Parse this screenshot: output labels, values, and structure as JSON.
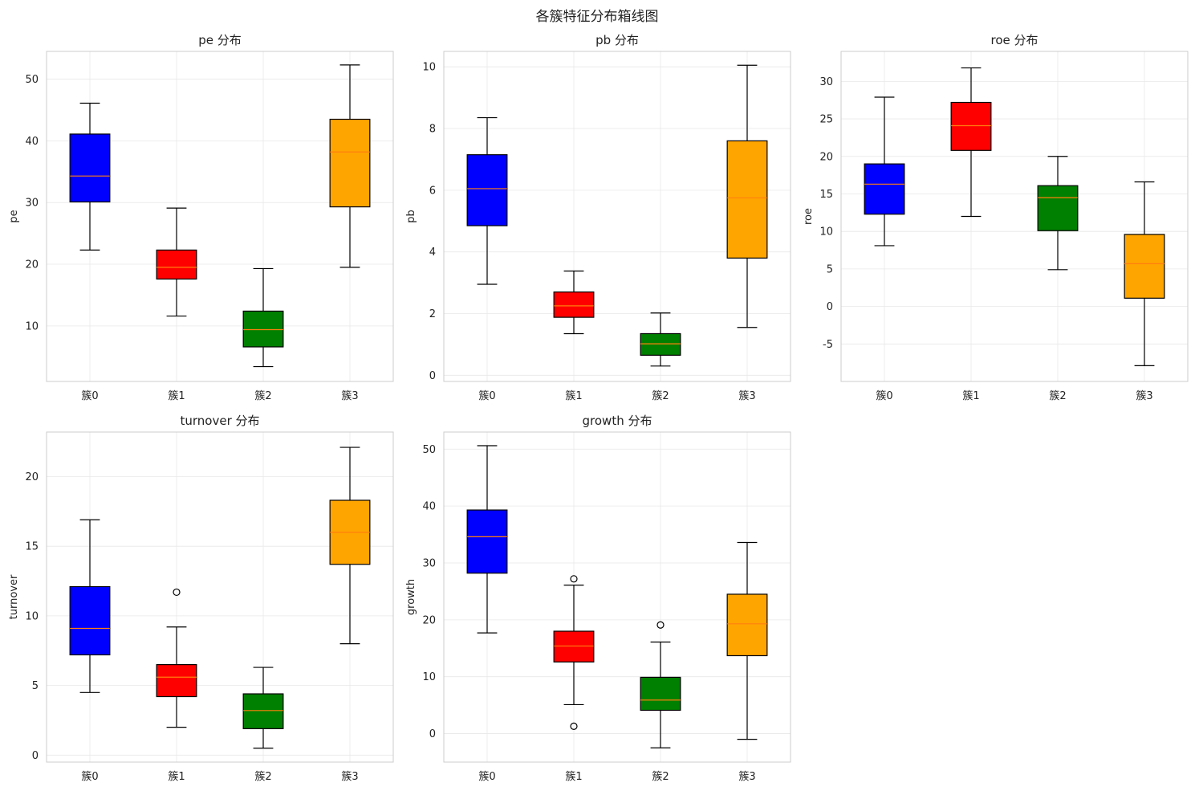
{
  "chart_data": {
    "suptitle": "各簇特征分布箱线图",
    "type": "box",
    "categories": [
      "簇0",
      "簇1",
      "簇2",
      "簇3"
    ],
    "colors": [
      "#0000ff",
      "#ff0000",
      "#008000",
      "#ffa500"
    ],
    "median_color": "#ff7f0e",
    "grid": true,
    "panels": [
      {
        "title": "pe 分布",
        "ylabel": "pe",
        "ylim": [
          1,
          54.5
        ],
        "yticks": [
          10,
          20,
          30,
          40,
          50
        ],
        "ytick_labels": [
          "10",
          "20",
          "30",
          "40",
          "50"
        ],
        "boxes": [
          {
            "whislo": 22.3,
            "q1": 30.1,
            "med": 34.3,
            "q3": 41.1,
            "whishi": 46.1,
            "fliers": []
          },
          {
            "whislo": 11.6,
            "q1": 17.6,
            "med": 19.5,
            "q3": 22.3,
            "whishi": 29.1,
            "fliers": []
          },
          {
            "whislo": 3.4,
            "q1": 6.6,
            "med": 9.4,
            "q3": 12.4,
            "whishi": 19.3,
            "fliers": []
          },
          {
            "whislo": 19.5,
            "q1": 29.3,
            "med": 38.2,
            "q3": 43.5,
            "whishi": 52.3,
            "fliers": []
          }
        ]
      },
      {
        "title": "pb 分布",
        "ylabel": "pb",
        "ylim": [
          -0.2,
          10.5
        ],
        "yticks": [
          0,
          2,
          4,
          6,
          8,
          10
        ],
        "ytick_labels": [
          "0",
          "2",
          "4",
          "6",
          "8",
          "10"
        ],
        "boxes": [
          {
            "whislo": 2.95,
            "q1": 4.85,
            "med": 6.05,
            "q3": 7.15,
            "whishi": 8.35,
            "fliers": []
          },
          {
            "whislo": 1.35,
            "q1": 1.88,
            "med": 2.25,
            "q3": 2.7,
            "whishi": 3.38,
            "fliers": []
          },
          {
            "whislo": 0.3,
            "q1": 0.65,
            "med": 1.02,
            "q3": 1.35,
            "whishi": 2.02,
            "fliers": []
          },
          {
            "whislo": 1.55,
            "q1": 3.8,
            "med": 5.75,
            "q3": 7.6,
            "whishi": 10.05,
            "fliers": []
          }
        ]
      },
      {
        "title": "roe 分布",
        "ylabel": "roe",
        "ylim": [
          -10,
          34
        ],
        "yticks": [
          -5,
          0,
          5,
          10,
          15,
          20,
          25,
          30
        ],
        "ytick_labels": [
          "-5",
          "0",
          "5",
          "10",
          "15",
          "20",
          "25",
          "30"
        ],
        "boxes": [
          {
            "whislo": 8.1,
            "q1": 12.3,
            "med": 16.3,
            "q3": 19.0,
            "whishi": 27.9,
            "fliers": []
          },
          {
            "whislo": 12.0,
            "q1": 20.8,
            "med": 24.1,
            "q3": 27.2,
            "whishi": 31.8,
            "fliers": []
          },
          {
            "whislo": 4.9,
            "q1": 10.1,
            "med": 14.5,
            "q3": 16.1,
            "whishi": 20.0,
            "fliers": []
          },
          {
            "whislo": -7.9,
            "q1": 1.1,
            "med": 5.7,
            "q3": 9.6,
            "whishi": 16.6,
            "fliers": []
          }
        ]
      },
      {
        "title": "turnover 分布",
        "ylabel": "turnover",
        "ylim": [
          -0.5,
          23.2
        ],
        "yticks": [
          0,
          5,
          10,
          15,
          20
        ],
        "ytick_labels": [
          "0",
          "5",
          "10",
          "15",
          "20"
        ],
        "boxes": [
          {
            "whislo": 4.5,
            "q1": 7.2,
            "med": 9.1,
            "q3": 12.1,
            "whishi": 16.9,
            "fliers": []
          },
          {
            "whislo": 2.0,
            "q1": 4.2,
            "med": 5.6,
            "q3": 6.5,
            "whishi": 9.2,
            "fliers": [
              11.7
            ]
          },
          {
            "whislo": 0.5,
            "q1": 1.9,
            "med": 3.2,
            "q3": 4.4,
            "whishi": 6.3,
            "fliers": []
          },
          {
            "whislo": 8.0,
            "q1": 13.7,
            "med": 16.0,
            "q3": 18.3,
            "whishi": 22.1,
            "fliers": []
          }
        ]
      },
      {
        "title": "growth 分布",
        "ylabel": "growth",
        "ylim": [
          -5,
          53
        ],
        "yticks": [
          0,
          10,
          20,
          30,
          40,
          50
        ],
        "ytick_labels": [
          "0",
          "10",
          "20",
          "30",
          "40",
          "50"
        ],
        "boxes": [
          {
            "whislo": 17.7,
            "q1": 28.2,
            "med": 34.6,
            "q3": 39.3,
            "whishi": 50.6,
            "fliers": []
          },
          {
            "whislo": 5.1,
            "q1": 12.6,
            "med": 15.4,
            "q3": 18.0,
            "whishi": 26.1,
            "fliers": [
              27.2,
              1.3
            ]
          },
          {
            "whislo": -2.5,
            "q1": 4.1,
            "med": 5.9,
            "q3": 9.9,
            "whishi": 16.1,
            "fliers": [
              19.1
            ]
          },
          {
            "whislo": -1.0,
            "q1": 13.7,
            "med": 19.3,
            "q3": 24.5,
            "whishi": 33.6,
            "fliers": []
          }
        ]
      }
    ]
  }
}
